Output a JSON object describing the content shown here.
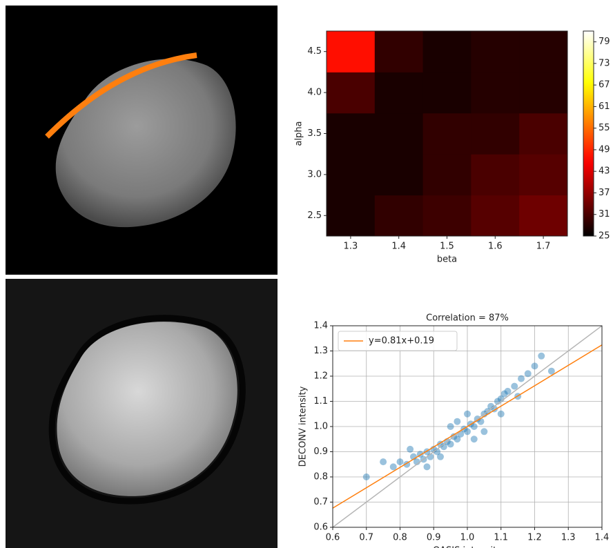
{
  "chart_data": [
    {
      "type": "heatmap",
      "xlabel": "beta",
      "ylabel": "alpha",
      "colormap": "hot",
      "x": [
        1.3,
        1.4,
        1.5,
        1.6,
        1.7
      ],
      "y": [
        2.5,
        3.0,
        3.5,
        4.0,
        4.5
      ],
      "values": [
        [
          27,
          29,
          30,
          32,
          34
        ],
        [
          27,
          27,
          29,
          31,
          32
        ],
        [
          27,
          27,
          29,
          29,
          31
        ],
        [
          31,
          27,
          27,
          28,
          28
        ],
        [
          47,
          29,
          27,
          28,
          28
        ]
      ],
      "xlim": [
        1.25,
        1.75
      ],
      "ylim": [
        2.25,
        4.75
      ],
      "xticks": [
        1.3,
        1.4,
        1.5,
        1.6,
        1.7
      ],
      "yticks": [
        2.5,
        {
          "value": 3,
          "label": "3.0"
        },
        3.5,
        {
          "value": 4,
          "label": "4.0"
        },
        4.5
      ],
      "clim": [
        25,
        82
      ],
      "cticks": [
        25,
        31,
        37,
        43,
        49,
        55,
        61,
        67,
        73,
        79
      ]
    },
    {
      "type": "scatter",
      "title": "Correlation = 87%",
      "xlabel": "OASIS intensity",
      "ylabel": "DECONV intensity",
      "xlim": [
        0.6,
        1.4
      ],
      "ylim": [
        0.6,
        1.4
      ],
      "grid": true,
      "legend": "upper left",
      "xticks": [
        0.6,
        0.7,
        0.8,
        0.9,
        {
          "value": 1,
          "label": "1.0"
        },
        1.1,
        1.2,
        1.3,
        1.4
      ],
      "yticks": [
        0.6,
        0.7,
        0.8,
        0.9,
        {
          "value": 1,
          "label": "1.0"
        },
        1.1,
        1.2,
        1.3,
        1.4
      ],
      "points": {
        "color": "#1f77b4",
        "x": [
          0.8,
          0.82,
          0.84,
          0.85,
          0.86,
          0.87,
          0.88,
          0.89,
          0.9,
          0.91,
          0.92,
          0.93,
          0.94,
          0.95,
          0.96,
          0.97,
          0.98,
          0.99,
          1.0,
          1.01,
          1.02,
          1.03,
          1.04,
          1.05,
          1.06,
          1.07,
          1.08,
          1.09,
          1.1,
          1.11,
          1.12,
          1.14,
          1.16,
          1.18,
          1.2,
          0.78,
          0.75,
          0.83,
          0.92,
          1.0,
          1.05,
          1.15,
          1.22,
          0.7,
          1.25,
          0.95,
          0.88,
          1.1,
          1.02,
          0.97
        ],
        "y": [
          0.86,
          0.85,
          0.88,
          0.86,
          0.89,
          0.87,
          0.9,
          0.88,
          0.91,
          0.9,
          0.93,
          0.92,
          0.94,
          0.93,
          0.96,
          0.95,
          0.97,
          0.99,
          0.98,
          1.01,
          1.0,
          1.03,
          1.02,
          1.05,
          1.06,
          1.08,
          1.07,
          1.1,
          1.11,
          1.13,
          1.14,
          1.16,
          1.19,
          1.21,
          1.24,
          0.84,
          0.86,
          0.91,
          0.88,
          1.05,
          0.98,
          1.12,
          1.28,
          0.8,
          1.22,
          1.0,
          0.84,
          1.05,
          0.95,
          1.02
        ]
      },
      "fit": {
        "name": "y=0.81x+0.19",
        "slope": 0.81,
        "intercept": 0.19,
        "color": "#ff7f0e"
      },
      "reference_line": {
        "slope": 1,
        "intercept": 0,
        "color": "#b5b5b5"
      }
    }
  ]
}
